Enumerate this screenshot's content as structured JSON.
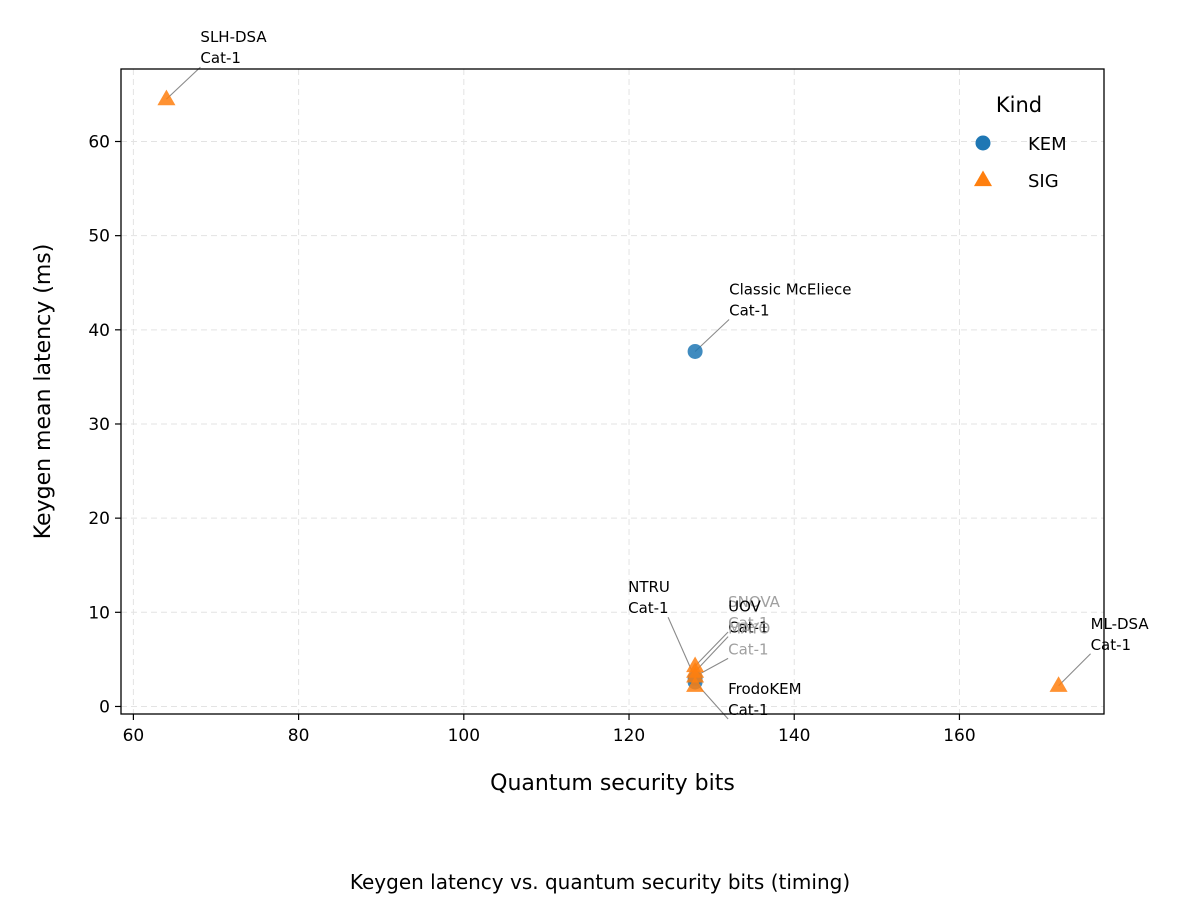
{
  "chart_data": {
    "type": "scatter",
    "title": "",
    "caption": "Keygen latency vs. quantum security bits (timing)",
    "xlabel": "Quantum security bits",
    "ylabel": "Keygen mean latency (ms)",
    "xlim": [
      58.5,
      177.5
    ],
    "ylim": [
      -0.8,
      67.7
    ],
    "xticks": [
      60,
      80,
      100,
      120,
      140,
      160
    ],
    "yticks": [
      0,
      10,
      20,
      30,
      40,
      50,
      60
    ],
    "grid": true,
    "legend": {
      "title": "Kind",
      "placement": "top-right",
      "entries": [
        {
          "label": "KEM",
          "marker": "circle",
          "color": "#1f77b4"
        },
        {
          "label": "SIG",
          "marker": "triangle",
          "color": "#ff7f0e"
        }
      ]
    },
    "series": [
      {
        "name": "KEM",
        "marker": "circle",
        "color": "#1f77b4",
        "points": [
          {
            "x": 128,
            "y": 37.7,
            "label": [
              "Classic McEliece",
              "Cat-1"
            ]
          },
          {
            "x": 128,
            "y": 3.0,
            "label": [
              "NTRU",
              "Cat-1"
            ]
          },
          {
            "x": 128,
            "y": 2.6,
            "label": [
              "FrodoKEM",
              "Cat-1"
            ]
          }
        ]
      },
      {
        "name": "SIG",
        "marker": "triangle",
        "color": "#ff7f0e",
        "points": [
          {
            "x": 64,
            "y": 64.5,
            "label": [
              "SLH-DSA",
              "Cat-1"
            ]
          },
          {
            "x": 172,
            "y": 2.2,
            "label": [
              "ML-DSA",
              "Cat-1"
            ]
          },
          {
            "x": 128,
            "y": 4.3,
            "label": [
              "SNOVA",
              "Cat-1"
            ]
          },
          {
            "x": 128,
            "y": 3.7,
            "label": [
              "UOV",
              "Cat-1"
            ]
          },
          {
            "x": 128,
            "y": 3.2,
            "label": [
              "MAYO",
              "Cat-1"
            ]
          },
          {
            "x": 128,
            "y": 2.2,
            "label": []
          }
        ]
      }
    ]
  }
}
